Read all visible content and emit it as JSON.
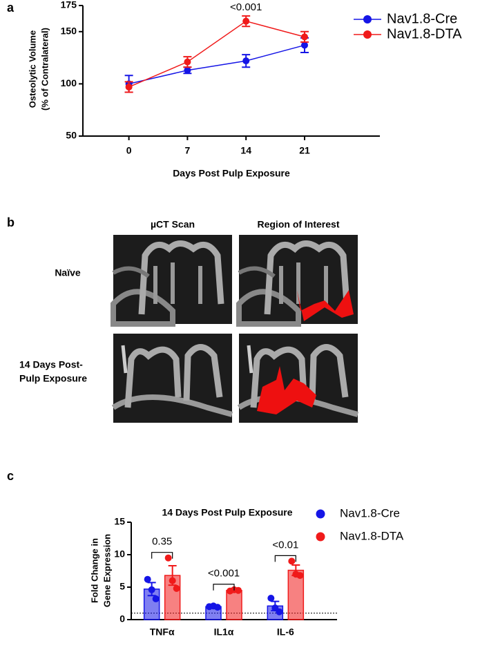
{
  "panel_labels": [
    "a",
    "b",
    "c"
  ],
  "images": {
    "col_headers": [
      "µCT Scan",
      "Region of Interest"
    ],
    "row_labels": [
      [
        "Naïve"
      ],
      [
        "14 Days Post-",
        "Pulp Exposure"
      ]
    ]
  },
  "chart_data": [
    {
      "type": "line",
      "xlabel": "Days Post Pulp Exposure",
      "ylabel": [
        "Osteolytic  Volume",
        "(% of Contralateral)"
      ],
      "x": [
        0,
        7,
        14,
        21
      ],
      "xlim": [
        -5.5,
        30
      ],
      "xticks": [
        0,
        7,
        14,
        21
      ],
      "ylim": [
        50,
        175
      ],
      "yticks": [
        50,
        100,
        150,
        175
      ],
      "series": [
        {
          "name": "Nav1.8-Cre",
          "color": "#1515e6",
          "values": [
            100,
            113,
            122,
            137
          ],
          "errors": [
            8,
            3,
            6,
            7
          ]
        },
        {
          "name": "Nav1.8-DTA",
          "color": "#f01a1a",
          "values": [
            97,
            121,
            160,
            145
          ],
          "errors": [
            5,
            5,
            5,
            5
          ]
        }
      ],
      "annotations": [
        {
          "x": 14,
          "text": "<0.001"
        }
      ]
    },
    {
      "type": "bar",
      "title": "14 Days Post Pulp Exposure",
      "ylabel": [
        "Fold Change in",
        "Gene Expression"
      ],
      "categories": [
        "TNFα",
        "IL1α",
        "IL-6"
      ],
      "ylim": [
        0,
        15
      ],
      "yticks": [
        0,
        5,
        10,
        15
      ],
      "reference_line": 1,
      "series": [
        {
          "name": "Nav1.8-Cre",
          "color": "#1515e6",
          "values": [
            4.7,
            2.0,
            2.1
          ],
          "errors": [
            1.0,
            0.1,
            0.7
          ],
          "points": [
            [
              6.2,
              4.6,
              3.2
            ],
            [
              2.0,
              2.1,
              1.9
            ],
            [
              3.3,
              1.8,
              1.2
            ]
          ]
        },
        {
          "name": "Nav1.8-DTA",
          "color": "#f01a1a",
          "values": [
            6.8,
            4.5,
            7.6
          ],
          "errors": [
            1.5,
            0.1,
            0.8
          ],
          "points": [
            [
              9.5,
              6.0,
              4.8
            ],
            [
              4.4,
              4.6,
              4.5
            ],
            [
              9.0,
              7.0,
              6.8
            ]
          ]
        }
      ],
      "p_values": [
        "0.35",
        "<0.001",
        "<0.01"
      ]
    }
  ]
}
